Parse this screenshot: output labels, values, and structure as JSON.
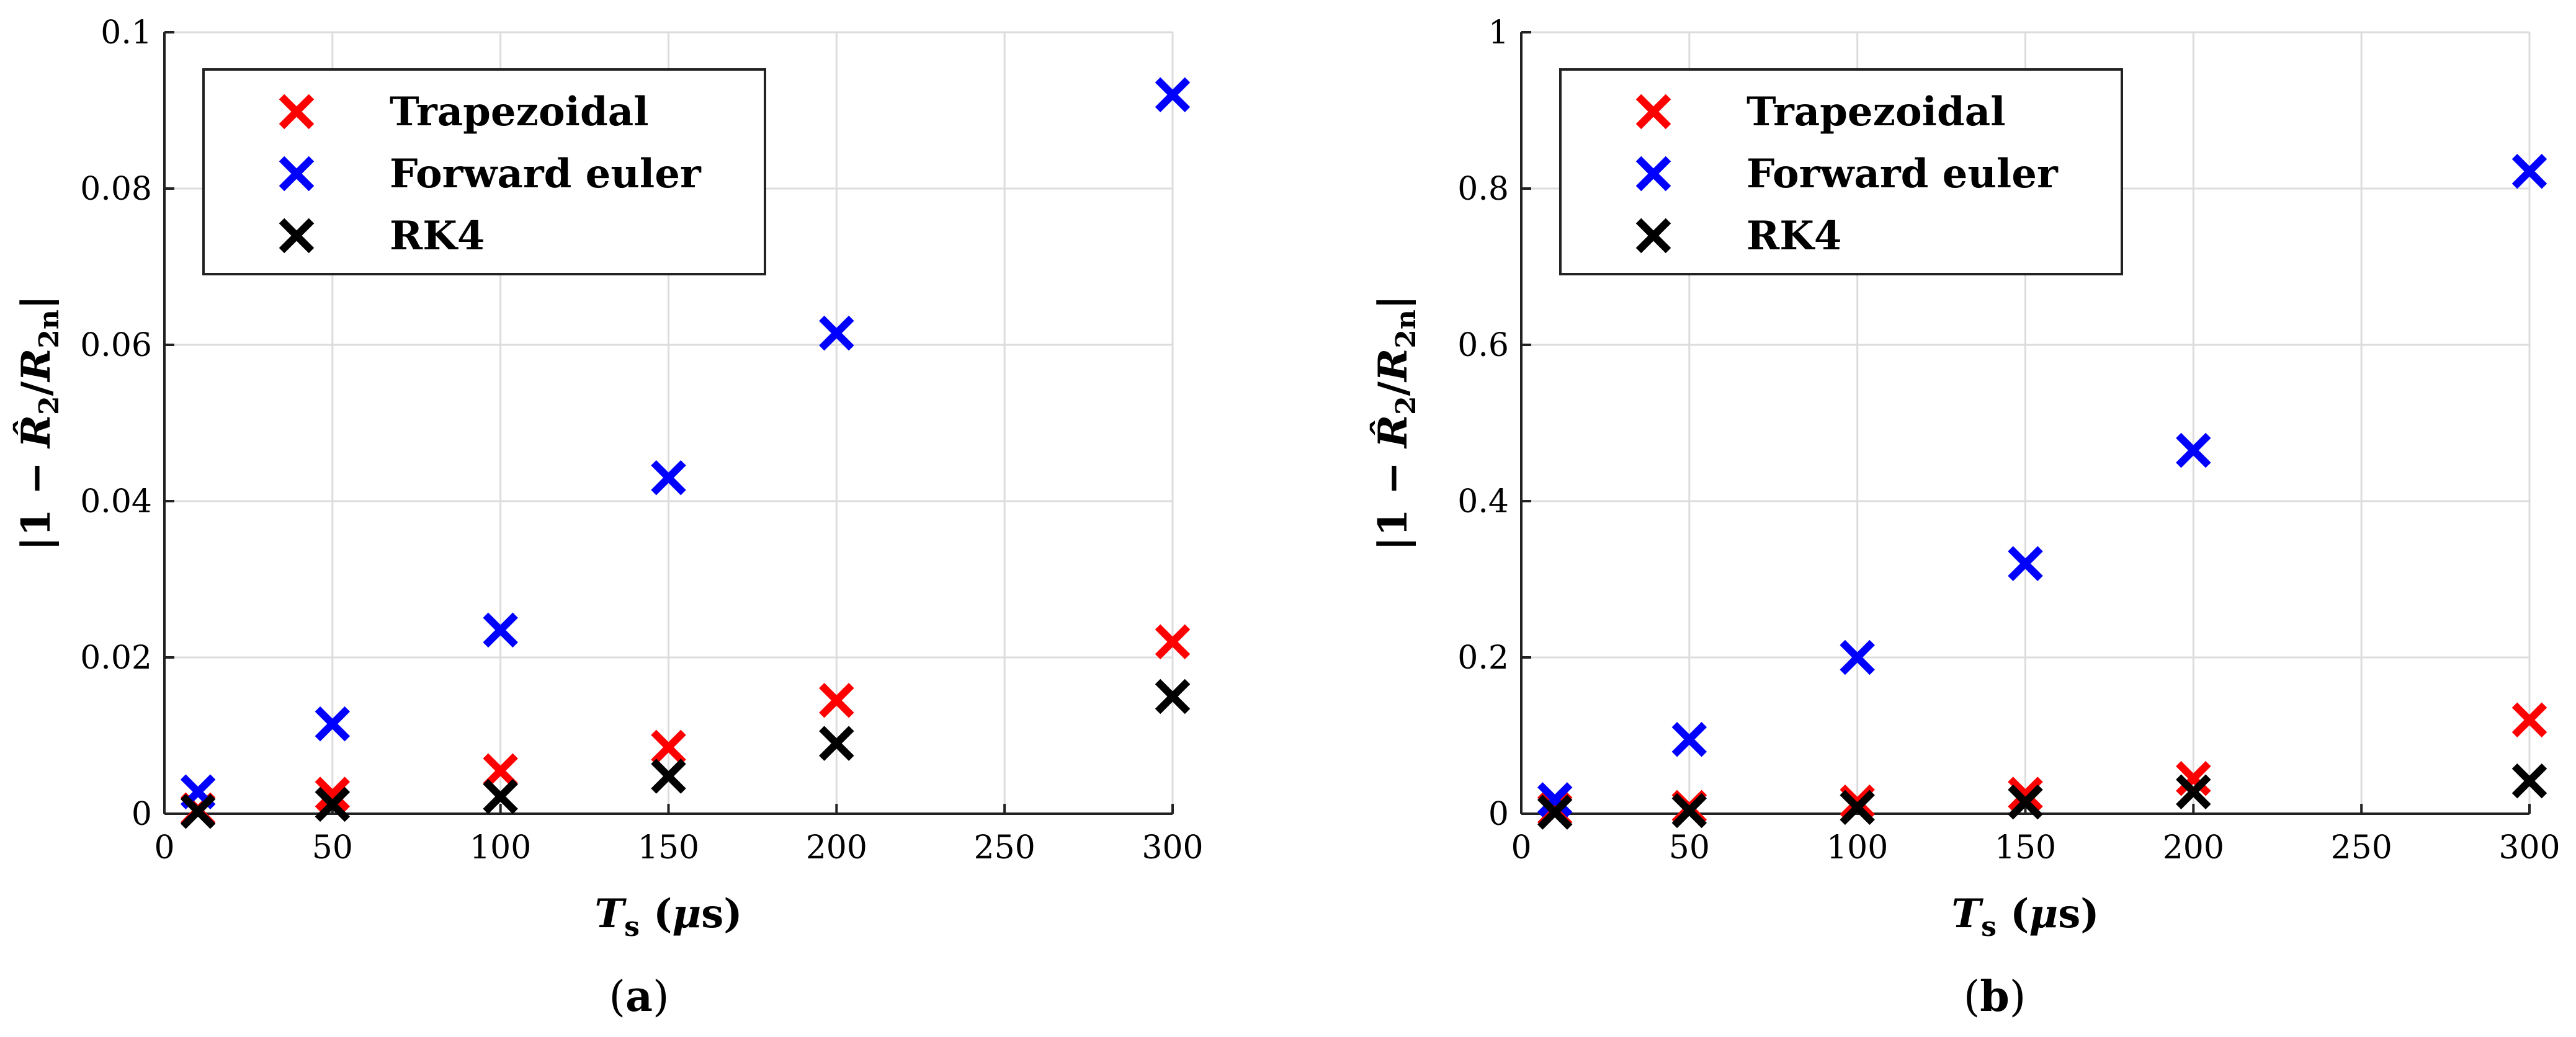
{
  "chart_data": [
    {
      "type": "scatter",
      "xlabel": "T_s (μs)",
      "ylabel": "|1 − R̂2/R2n|",
      "xlim": [
        0,
        300
      ],
      "ylim": [
        0,
        0.1
      ],
      "x_ticks": [
        "0",
        "50",
        "100",
        "150",
        "200",
        "250",
        "300"
      ],
      "y_ticks": [
        "0",
        "0.02",
        "0.04",
        "0.06",
        "0.08",
        "0.1"
      ],
      "grid": true,
      "legend_position": "top-left",
      "caption": "(a)",
      "series": [
        {
          "name": "Trapezoidal",
          "color": "#ff0000",
          "x": [
            10,
            50,
            100,
            150,
            200,
            300
          ],
          "y": [
            0.0005,
            0.0025,
            0.0055,
            0.0085,
            0.0145,
            0.022
          ]
        },
        {
          "name": "Forward euler",
          "color": "#0000ff",
          "x": [
            10,
            50,
            100,
            150,
            200,
            300
          ],
          "y": [
            0.0028,
            0.0115,
            0.0235,
            0.043,
            0.0615,
            0.092
          ]
        },
        {
          "name": "RK4",
          "color": "#000000",
          "x": [
            10,
            50,
            100,
            150,
            200,
            300
          ],
          "y": [
            0.0003,
            0.0012,
            0.0022,
            0.0048,
            0.009,
            0.015
          ]
        }
      ]
    },
    {
      "type": "scatter",
      "xlabel": "T_s (μs)",
      "ylabel": "|1 − R̂2/R2n|",
      "xlim": [
        0,
        300
      ],
      "ylim": [
        0,
        1
      ],
      "x_ticks": [
        "0",
        "50",
        "100",
        "150",
        "200",
        "250",
        "300"
      ],
      "y_ticks": [
        "0",
        "0.2",
        "0.4",
        "0.6",
        "0.8",
        "1"
      ],
      "grid": true,
      "legend_position": "top-left",
      "caption": "(b)",
      "series": [
        {
          "name": "Trapezoidal",
          "color": "#ff0000",
          "x": [
            10,
            50,
            100,
            150,
            200,
            300
          ],
          "y": [
            0.005,
            0.008,
            0.015,
            0.025,
            0.045,
            0.12
          ]
        },
        {
          "name": "Forward euler",
          "color": "#0000ff",
          "x": [
            10,
            50,
            100,
            150,
            200,
            300
          ],
          "y": [
            0.018,
            0.095,
            0.2,
            0.32,
            0.465,
            0.822
          ]
        },
        {
          "name": "RK4",
          "color": "#000000",
          "x": [
            10,
            50,
            100,
            150,
            200,
            300
          ],
          "y": [
            0.002,
            0.004,
            0.008,
            0.015,
            0.028,
            0.042
          ]
        }
      ]
    }
  ]
}
